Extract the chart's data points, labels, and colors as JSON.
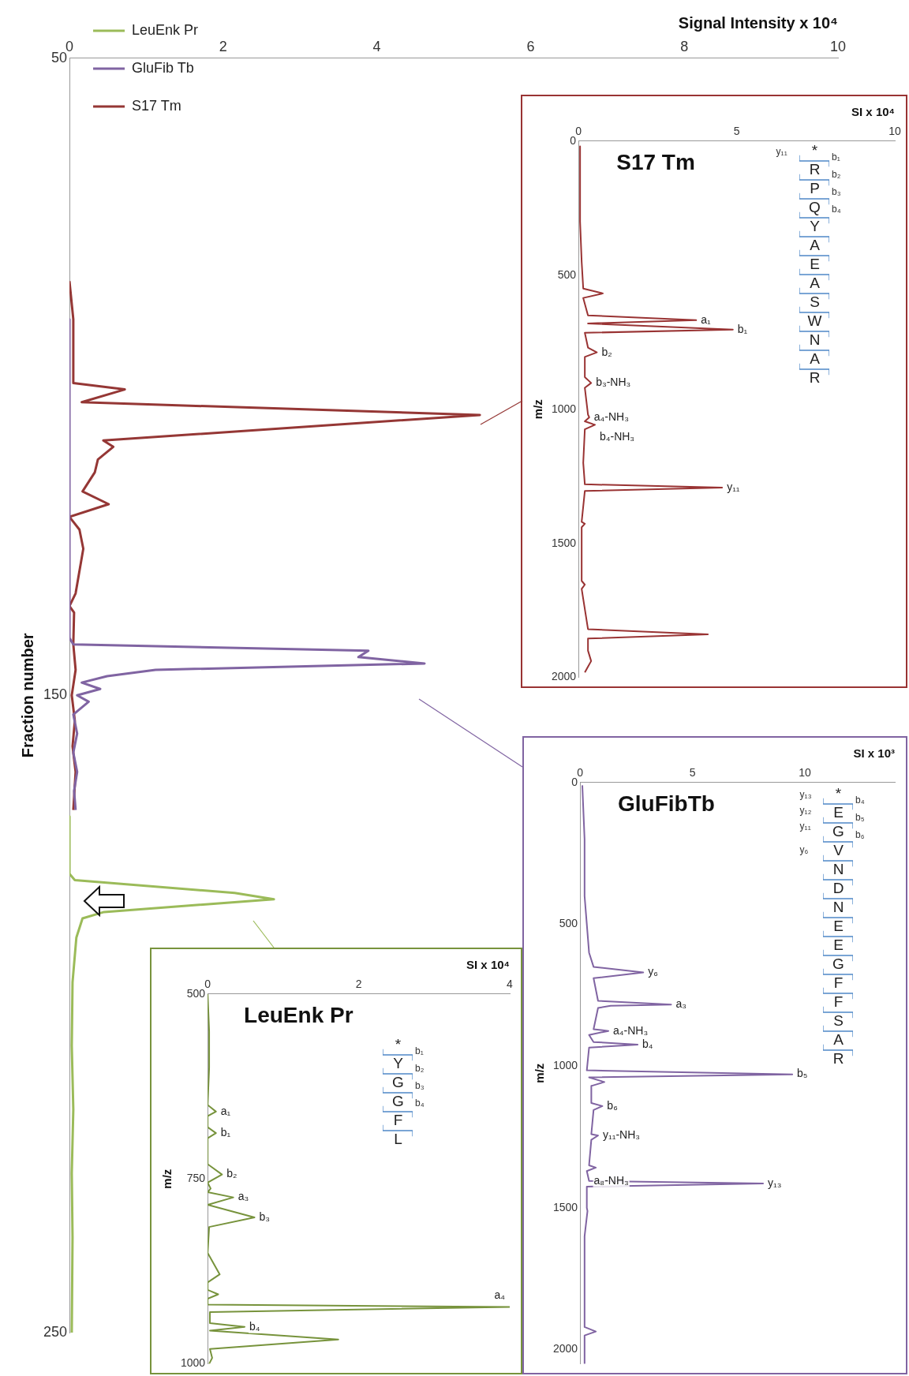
{
  "chart_data": [
    {
      "type": "line",
      "orientation": "horizontal",
      "xlabel": "Signal Intensity x 10⁴",
      "ylabel": "Fraction number",
      "xlim": [
        0,
        10
      ],
      "xticks": [
        0,
        2,
        4,
        6,
        8,
        10
      ],
      "ylim": [
        250,
        50
      ],
      "yticks": [
        50,
        150,
        250
      ],
      "legend": "top left",
      "grid": false,
      "series": [
        {
          "name": "LeuEnk Pr",
          "color": "#9bbb59",
          "x": [
            169,
            178,
            179,
            181,
            182,
            184,
            185,
            188,
            195,
            205,
            215,
            225,
            235,
            250
          ],
          "values": [
            0,
            0,
            0.07,
            2.15,
            2.66,
            0.45,
            0.17,
            0.09,
            0.04,
            0.03,
            0.05,
            0.03,
            0.04,
            0.03
          ]
        },
        {
          "name": "GluFib Tb",
          "color": "#8064a2",
          "x": [
            91,
            141,
            142,
            143,
            144,
            145,
            146,
            147,
            148,
            149,
            150,
            151,
            153,
            156,
            159,
            162,
            165,
            168
          ],
          "values": [
            0,
            0,
            0.05,
            3.89,
            3.76,
            4.62,
            1.12,
            0.49,
            0.16,
            0.4,
            0.1,
            0.25,
            0.05,
            0.1,
            0.05,
            0.1,
            0.06,
            0.08
          ]
        },
        {
          "name": "S17 Tm",
          "color": "#953735",
          "x": [
            85,
            91,
            101,
            102,
            104,
            106,
            110,
            111,
            113,
            115,
            118,
            120,
            122,
            124,
            127,
            134,
            136,
            137,
            142,
            146,
            150,
            154,
            158,
            162,
            168
          ],
          "values": [
            0,
            0.05,
            0.05,
            0.72,
            0.16,
            5.34,
            0.44,
            0.57,
            0.37,
            0.33,
            0.17,
            0.51,
            0,
            0.13,
            0.18,
            0.08,
            0,
            0.06,
            0.05,
            0.08,
            0.03,
            0.07,
            0.04,
            0.08,
            0.05
          ]
        }
      ]
    },
    {
      "type": "line",
      "orientation": "horizontal",
      "title": "S17 Tm",
      "xlabel": "SI x 10⁴",
      "ylabel": "m/z",
      "xlim": [
        0,
        10
      ],
      "xticks": [
        0,
        5,
        10
      ],
      "ylim": [
        2000,
        0
      ],
      "yticks": [
        0,
        500,
        1000,
        1500,
        2000
      ],
      "grid": false,
      "series": [
        {
          "color": "#993333",
          "x": [
            20,
            100,
            300,
            450,
            550,
            568,
            585,
            650,
            668,
            680,
            703,
            715,
            770,
            788,
            805,
            880,
            902,
            920,
            1020,
            1030,
            1045,
            1058,
            1075,
            1200,
            1280,
            1292,
            1305,
            1420,
            1427,
            1440,
            1640,
            1654,
            1670,
            1820,
            1839,
            1855,
            1900,
            1939,
            1960,
            1981
          ],
          "values": [
            0.05,
            0.05,
            0.05,
            0.1,
            0.15,
            0.77,
            0.15,
            0.3,
            3.72,
            0.3,
            4.88,
            0.2,
            0.3,
            0.58,
            0.2,
            0.2,
            0.4,
            0.2,
            0.3,
            0.34,
            0.2,
            0.52,
            0.2,
            0.15,
            0.2,
            4.54,
            0.2,
            0.1,
            0.2,
            0.1,
            0.1,
            0.2,
            0.1,
            0.3,
            4.09,
            0.3,
            0.3,
            0.4,
            0.3,
            0.2
          ]
        }
      ],
      "annotations": [
        "*RPQYAEASWNAR",
        "b₁ b₂ b₃ b₄",
        "y₁₁",
        {
          "text": "a₁",
          "x": 3.72,
          "y": 668
        },
        {
          "text": "b₁",
          "x": 4.88,
          "y": 703
        },
        {
          "text": "b₂",
          "x": 0.58,
          "y": 788
        },
        {
          "text": "b₃-NH₃",
          "x": 0.4,
          "y": 902
        },
        {
          "text": "a₄-NH₃",
          "x": 0.34,
          "y": 1030
        },
        {
          "text": "b₄-NH₃",
          "x": 0.52,
          "y": 1058
        },
        {
          "text": "y₁₁",
          "x": 4.54,
          "y": 1292
        }
      ]
    },
    {
      "type": "line",
      "orientation": "horizontal",
      "title": "GluFibTb",
      "xlabel": "SI x 10³",
      "ylabel": "m/z",
      "xlim": [
        0,
        14
      ],
      "xticks": [
        0,
        5,
        10
      ],
      "ylim": [
        2050,
        0
      ],
      "yticks": [
        0,
        500,
        1000,
        1500,
        2000
      ],
      "grid": false,
      "series": [
        {
          "color": "#8064a2",
          "x": [
            10,
            200,
            400,
            600,
            650,
            670,
            690,
            770,
            783,
            787,
            795,
            870,
            876,
            890,
            915,
            924,
            935,
            1015,
            1029,
            1040,
            1056,
            1070,
            1130,
            1141,
            1155,
            1240,
            1245,
            1260,
            1350,
            1358,
            1370,
            1405,
            1414,
            1425,
            1500,
            1511,
            1600,
            1800,
            1920,
            1936,
            1950,
            2049
          ],
          "values": [
            0.1,
            0.2,
            0.2,
            0.4,
            0.6,
            2.81,
            0.6,
            0.8,
            4.05,
            1.36,
            0.8,
            0.6,
            1.26,
            0.4,
            0.6,
            2.56,
            0.4,
            0.3,
            9.44,
            0.4,
            1.08,
            0.5,
            0.5,
            0.99,
            0.6,
            0.5,
            0.8,
            0.5,
            0.4,
            0.7,
            0.3,
            0.4,
            8.14,
            0.3,
            0.3,
            0.33,
            0.2,
            0.2,
            0.2,
            0.7,
            0.2,
            0.2
          ]
        }
      ],
      "annotations": [
        "*EGVNDNEEGFFSAR",
        "b₄ b₅ b₆",
        "y₁₃ y₁₂ y₁₁",
        "y₆",
        {
          "text": "y₆",
          "x": 2.81,
          "y": 670
        },
        {
          "text": "a₃",
          "x": 4.05,
          "y": 783
        },
        {
          "text": "a₄-NH₃",
          "x": 1.26,
          "y": 876
        },
        {
          "text": "b₄",
          "x": 2.56,
          "y": 924
        },
        {
          "text": "b₅",
          "x": 9.44,
          "y": 1029
        },
        {
          "text": "b₆",
          "x": 0.99,
          "y": 1141
        },
        {
          "text": "y₁₁-NH₃",
          "x": 0.8,
          "y": 1245
        },
        {
          "text": "y₁₃",
          "x": 8.14,
          "y": 1414
        },
        {
          "text": "a₈-NH₃",
          "x": 0.4,
          "y": 1405
        }
      ]
    },
    {
      "type": "line",
      "orientation": "horizontal",
      "title": "LeuEnk Pr",
      "xlabel": "SI x 10⁴",
      "ylabel": "m/z",
      "xlim": [
        0,
        4
      ],
      "xticks": [
        0,
        2,
        4
      ],
      "ylim": [
        1000,
        500
      ],
      "yticks": [
        500,
        750,
        1000
      ],
      "grid": false,
      "series": [
        {
          "color": "#77933c",
          "x": [
            500,
            550,
            600,
            650,
            659,
            665,
            680,
            688,
            695,
            730,
            744,
            755,
            763,
            768,
            775,
            785,
            802,
            815,
            850,
            879,
            890,
            900,
            906,
            912,
            920,
            923,
            930,
            945,
            950,
            955,
            967,
            980,
            992,
            1000
          ],
          "values": [
            0,
            0.02,
            0.02,
            0,
            0.11,
            0,
            0,
            0.11,
            0,
            0,
            0.19,
            0,
            0.04,
            0,
            0.34,
            0,
            0.62,
            0.02,
            0,
            0.16,
            0,
            0,
            0.14,
            0,
            0,
            4,
            0.03,
            0.03,
            0.49,
            0.03,
            1.73,
            0.03,
            0.06,
            0.02
          ]
        }
      ],
      "annotations": [
        "*YGGFL",
        "b₁ b₂ b₃ b₄",
        {
          "text": "a₁",
          "x": 0.11,
          "y": 659
        },
        {
          "text": "b₁",
          "x": 0.11,
          "y": 688
        },
        {
          "text": "b₂",
          "x": 0.19,
          "y": 744
        },
        {
          "text": "a₃",
          "x": 0.34,
          "y": 775
        },
        {
          "text": "b₃",
          "x": 0.62,
          "y": 802
        },
        {
          "text": "a₄",
          "x": 4,
          "y": 923
        },
        {
          "text": "b₄",
          "x": 0.49,
          "y": 950
        }
      ]
    }
  ]
}
